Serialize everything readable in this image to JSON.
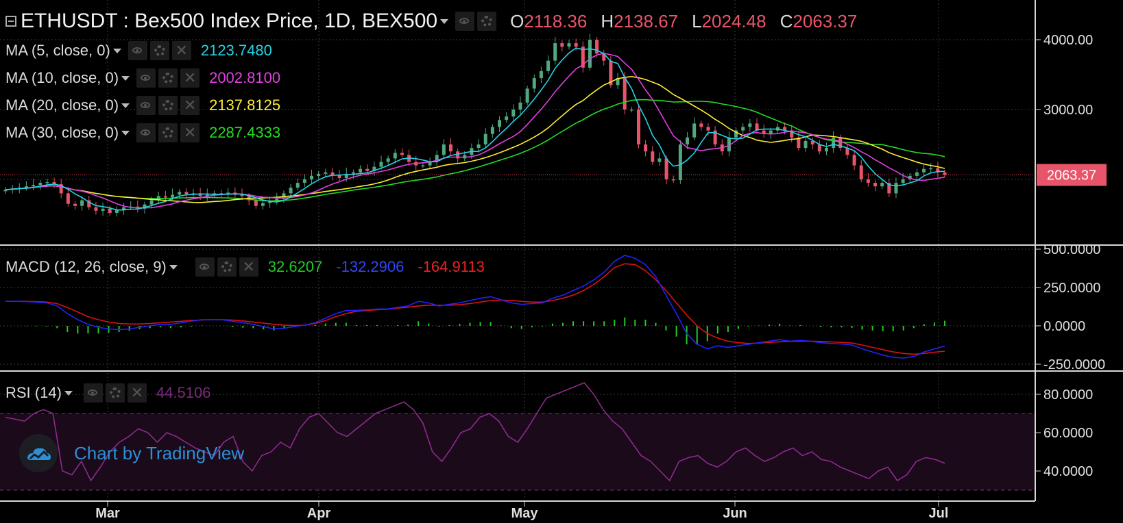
{
  "header": {
    "symbol": "ETHUSDT : Bex500 Index Price, 1D, BEX500",
    "o_label": "O",
    "o_value": "2118.36",
    "h_label": "H",
    "h_value": "2138.67",
    "l_label": "L",
    "l_value": "2024.48",
    "c_label": "C",
    "c_value": "2063.37"
  },
  "indicators": {
    "ma5": {
      "label": "MA (5, close, 0)",
      "value": "2123.7480",
      "color": "#22d3e6"
    },
    "ma10": {
      "label": "MA (10, close, 0)",
      "value": "2002.8100",
      "color": "#e040e0"
    },
    "ma20": {
      "label": "MA (20, close, 0)",
      "value": "2137.8125",
      "color": "#ffee33"
    },
    "ma30": {
      "label": "MA (30, close, 0)",
      "value": "2287.4333",
      "color": "#22dd22"
    },
    "macd": {
      "label": "MACD (12, 26, close, 9)",
      "hist_value": "32.6207",
      "macd_value": "-132.2906",
      "signal_value": "-164.9113"
    },
    "rsi": {
      "label": "RSI (14)",
      "value": "44.5106"
    }
  },
  "price_tag": "2063.37",
  "watermark": "Chart by TradingView",
  "colors": {
    "up": "#52a87e",
    "down": "#e8556a",
    "macd_line": "#2222ff",
    "signal_line": "#dd1111",
    "hist": "#22cc22",
    "rsi": "#8e2a8e"
  },
  "chart_data": [
    {
      "type": "candlestick",
      "title": "ETHUSDT : Bex500 Index Price, 1D, BEX500",
      "x_ticks": [
        "Mar",
        "Apr",
        "May",
        "Jun",
        "Jul"
      ],
      "y_ticks": [
        "4000.00",
        "3000.00"
      ],
      "ylim": [
        1400,
        4400
      ],
      "grid": true,
      "close_approx": [
        1850,
        1870,
        1880,
        1900,
        1920,
        1950,
        1960,
        1930,
        1800,
        1650,
        1620,
        1700,
        1600,
        1550,
        1580,
        1520,
        1560,
        1600,
        1610,
        1580,
        1640,
        1700,
        1760,
        1740,
        1780,
        1820,
        1790,
        1800,
        1760,
        1780,
        1800,
        1790,
        1810,
        1780,
        1760,
        1700,
        1620,
        1660,
        1680,
        1720,
        1800,
        1880,
        1950,
        2000,
        2050,
        2080,
        2100,
        2060,
        2020,
        2080,
        2100,
        2150,
        2120,
        2180,
        2250,
        2300,
        2380,
        2350,
        2250,
        2200,
        2200,
        2260,
        2350,
        2500,
        2400,
        2300,
        2350,
        2450,
        2500,
        2650,
        2750,
        2850,
        2900,
        3000,
        3100,
        3300,
        3450,
        3550,
        3700,
        3950,
        3900,
        3950,
        3900,
        3600,
        4000,
        3800,
        3700,
        3350,
        3450,
        3000,
        3000,
        2500,
        2400,
        2250,
        2300,
        2000,
        1990,
        2500,
        2600,
        2800,
        2750,
        2700,
        2500,
        2400,
        2600,
        2700,
        2750,
        2800,
        2700,
        2650,
        2700,
        2750,
        2700,
        2600,
        2450,
        2550,
        2500,
        2400,
        2450,
        2600,
        2450,
        2350,
        2200,
        2000,
        1950,
        1900,
        1950,
        1800,
        1950,
        2000,
        2050,
        2100,
        2150,
        2160,
        2100,
        2063
      ],
      "ma5_last": 2123.748,
      "ma10_last": 2002.81,
      "ma20_last": 2137.8125,
      "ma30_last": 2287.4333,
      "last_close": 2063.37
    },
    {
      "type": "line",
      "title": "MACD (12, 26, close, 9)",
      "y_ticks": [
        "500.0000",
        "250.0000",
        "0.0000",
        "-250.0000"
      ],
      "ylim": [
        -300,
        520
      ],
      "series": [
        {
          "name": "MACD",
          "color": "#2222ff",
          "values": [
            160,
            160,
            158,
            155,
            150,
            130,
            80,
            40,
            10,
            -10,
            -20,
            -25,
            -20,
            -10,
            0,
            10,
            10,
            20,
            30,
            40,
            40,
            40,
            30,
            20,
            10,
            -5,
            -20,
            -15,
            -5,
            5,
            20,
            50,
            80,
            100,
            100,
            105,
            110,
            110,
            120,
            130,
            160,
            150,
            130,
            140,
            150,
            165,
            180,
            190,
            170,
            150,
            140,
            145,
            150,
            180,
            200,
            230,
            260,
            300,
            350,
            420,
            460,
            440,
            400,
            320,
            200,
            80,
            -50,
            -120,
            -150,
            -130,
            -140,
            -130,
            -120,
            -110,
            -100,
            -90,
            -100,
            -95,
            -100,
            -110,
            -115,
            -118,
            -125,
            -150,
            -170,
            -190,
            -205,
            -210,
            -200,
            -170,
            -150,
            -132
          ]
        },
        {
          "name": "Signal",
          "color": "#dd1111",
          "values": [
            160,
            160,
            160,
            158,
            155,
            145,
            120,
            90,
            60,
            40,
            25,
            15,
            12,
            12,
            15,
            20,
            25,
            30,
            35,
            38,
            40,
            40,
            38,
            32,
            25,
            18,
            10,
            5,
            2,
            5,
            15,
            35,
            60,
            80,
            95,
            100,
            105,
            108,
            115,
            122,
            130,
            135,
            135,
            135,
            138,
            145,
            155,
            165,
            168,
            165,
            160,
            155,
            155,
            165,
            180,
            200,
            230,
            270,
            320,
            380,
            405,
            400,
            360,
            300,
            230,
            150,
            70,
            0,
            -50,
            -80,
            -100,
            -110,
            -115,
            -112,
            -108,
            -104,
            -102,
            -100,
            -100,
            -102,
            -105,
            -108,
            -112,
            -125,
            -140,
            -155,
            -170,
            -180,
            -185,
            -180,
            -172,
            -165
          ]
        },
        {
          "name": "Histogram",
          "color": "#22cc22",
          "values": [
            0,
            0,
            -2,
            -3,
            -5,
            -15,
            -40,
            -50,
            -50,
            -50,
            -45,
            -40,
            -32,
            -22,
            -15,
            -10,
            -15,
            -10,
            -5,
            2,
            0,
            0,
            -8,
            -12,
            -15,
            -23,
            -30,
            -20,
            -7,
            0,
            5,
            15,
            20,
            20,
            5,
            5,
            5,
            2,
            5,
            8,
            30,
            15,
            -5,
            5,
            12,
            20,
            25,
            25,
            2,
            -15,
            -20,
            -10,
            -5,
            15,
            20,
            30,
            30,
            30,
            30,
            40,
            55,
            40,
            40,
            20,
            -30,
            -70,
            -120,
            -120,
            -100,
            -50,
            -40,
            -20,
            -5,
            2,
            8,
            14,
            2,
            5,
            0,
            -8,
            -10,
            -10,
            -13,
            -25,
            -30,
            -35,
            -35,
            -30,
            -15,
            10,
            22,
            33
          ]
        }
      ]
    },
    {
      "type": "line",
      "title": "RSI (14)",
      "y_ticks": [
        "80.0000",
        "60.0000",
        "40.0000"
      ],
      "ylim": [
        25,
        90
      ],
      "upper_band": 70,
      "lower_band": 30,
      "series": [
        {
          "name": "RSI",
          "color": "#8e2a8e",
          "values": [
            68,
            67,
            66,
            70,
            72,
            70,
            40,
            38,
            45,
            35,
            42,
            50,
            55,
            58,
            62,
            60,
            55,
            60,
            58,
            55,
            52,
            50,
            48,
            55,
            58,
            45,
            40,
            48,
            50,
            55,
            52,
            62,
            68,
            70,
            65,
            60,
            58,
            62,
            66,
            70,
            72,
            74,
            76,
            72,
            65,
            50,
            45,
            52,
            60,
            62,
            68,
            70,
            66,
            58,
            55,
            62,
            70,
            78,
            80,
            82,
            84,
            86,
            80,
            72,
            66,
            62,
            55,
            48,
            45,
            40,
            35,
            45,
            47,
            48,
            44,
            42,
            45,
            50,
            52,
            48,
            45,
            47,
            50,
            52,
            48,
            50,
            46,
            45,
            42,
            40,
            38,
            36,
            40,
            42,
            35,
            38,
            45,
            47,
            46,
            44
          ]
        }
      ]
    }
  ]
}
